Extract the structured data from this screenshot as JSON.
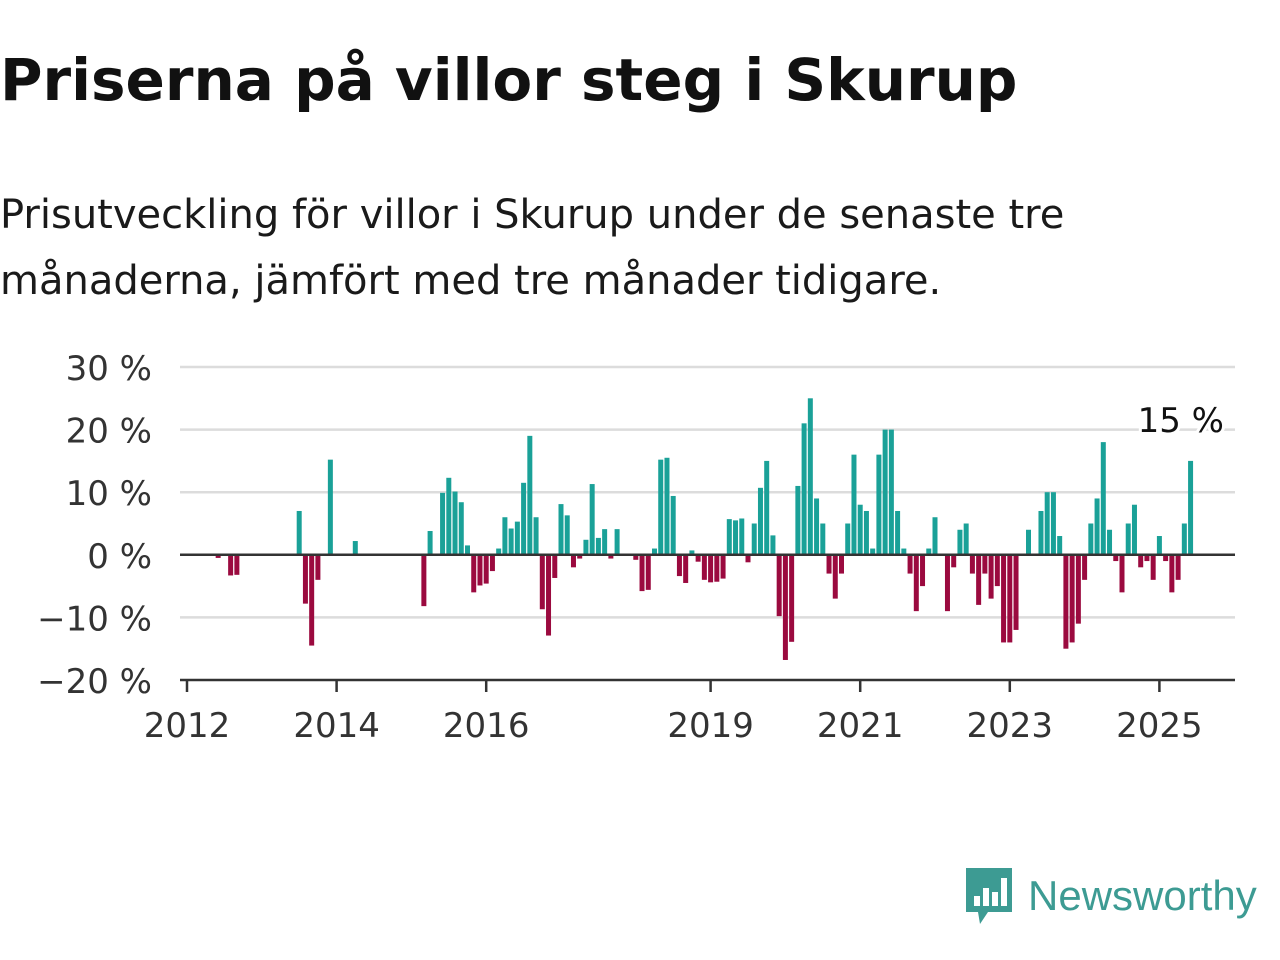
{
  "header": {
    "title": "Priserna på villor steg i Skurup",
    "subtitle": "Prisutveckling för villor i Skurup under de senaste tre månaderna, jämfört med tre månader tidigare."
  },
  "brand": {
    "name": "Newsworthy",
    "icon": "newsworthy-logo-icon",
    "color": "#3d9b93"
  },
  "chart_data": {
    "type": "bar",
    "x_start": 2012.0,
    "x_step_months": 1,
    "xlim": [
      2012,
      2026
    ],
    "ylim": [
      -20,
      30
    ],
    "y_ticks": [
      30,
      20,
      10,
      0,
      -10,
      -20
    ],
    "y_tick_labels": [
      "30 %",
      "20 %",
      "10 %",
      "0 %",
      "−10 %",
      "−20 %"
    ],
    "x_ticks": [
      2012,
      2014,
      2016,
      2019,
      2021,
      2023,
      2025
    ],
    "x_tick_labels": [
      "2012",
      "2014",
      "2016",
      "2019",
      "2021",
      "2023",
      "2025"
    ],
    "grid": true,
    "positive_color": "#1aa198",
    "negative_color": "#9b0a3f",
    "last_value_label": "15 %",
    "values": [
      null,
      null,
      null,
      null,
      null,
      -0.5,
      null,
      -3.3,
      -3.2,
      null,
      null,
      null,
      null,
      null,
      null,
      null,
      null,
      null,
      7,
      -7.8,
      -14.5,
      -4,
      null,
      15.2,
      null,
      null,
      null,
      2.2,
      null,
      null,
      null,
      null,
      null,
      null,
      null,
      null,
      null,
      null,
      -8.2,
      3.8,
      null,
      9.9,
      12.3,
      10.1,
      8.4,
      1.5,
      -6,
      -4.9,
      -4.6,
      -2.6,
      1,
      6,
      4.2,
      5.3,
      11.5,
      19,
      6,
      -8.7,
      -12.9,
      -3.7,
      8.1,
      6.3,
      -2,
      -0.6,
      2.4,
      11.3,
      2.7,
      4.1,
      -0.6,
      4.1,
      null,
      null,
      -0.8,
      -5.8,
      -5.6,
      1,
      15.2,
      15.5,
      9.4,
      -3.4,
      -4.5,
      0.7,
      -1.1,
      -4,
      -4.4,
      -4.3,
      -3.8,
      5.7,
      5.5,
      5.8,
      -1.2,
      5,
      10.7,
      15,
      3.1,
      -9.8,
      -16.8,
      -13.9,
      11,
      21,
      25,
      9,
      5,
      -3,
      -7,
      -3,
      5,
      16,
      8,
      7,
      1,
      16,
      20,
      20,
      7,
      1,
      -3,
      -9,
      -5,
      1,
      6,
      null,
      -9,
      -2,
      4,
      5,
      -3,
      -8,
      -3,
      -7,
      -5,
      -14,
      -14,
      -12,
      null,
      4,
      null,
      7,
      10,
      10,
      3,
      -15,
      -14,
      -11,
      -4,
      5,
      9,
      18,
      4,
      -1,
      -6,
      5,
      8,
      -2,
      -1,
      -4,
      3,
      -1,
      -6,
      -4,
      5,
      15
    ]
  }
}
